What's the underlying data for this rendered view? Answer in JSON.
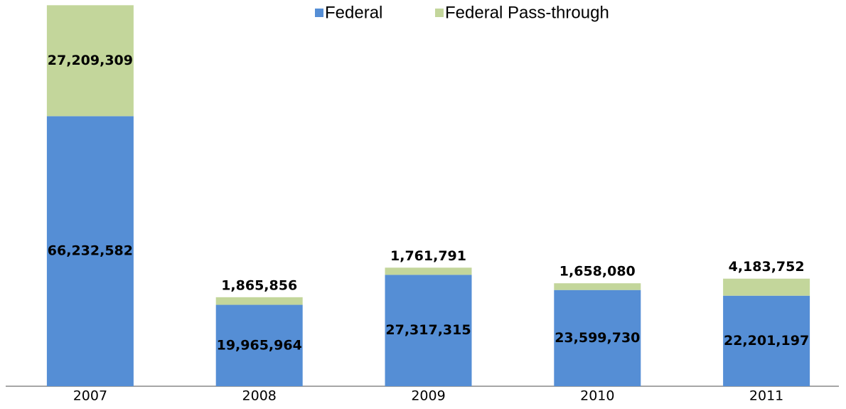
{
  "chart_data": {
    "type": "stacked_bar",
    "categories": [
      "2007",
      "2008",
      "2009",
      "2010",
      "2011"
    ],
    "series": [
      {
        "name": "Federal",
        "color": "#558ed5",
        "values": [
          66232582,
          19965964,
          27317315,
          23599730,
          22201197
        ],
        "value_labels": [
          "66,232,582",
          "19,965,964",
          "27,317,315",
          "23,599,730",
          "22,201,197"
        ]
      },
      {
        "name": "Federal Pass-through",
        "color": "#c3d69b",
        "values": [
          27209309,
          1865856,
          1761791,
          1658080,
          4183752
        ],
        "value_labels": [
          "27,209,309",
          "1,865,856",
          "1,761,791",
          "1,658,080",
          "4,183,752"
        ]
      }
    ],
    "ylim": [
      0,
      93500000
    ],
    "legend": "top"
  }
}
